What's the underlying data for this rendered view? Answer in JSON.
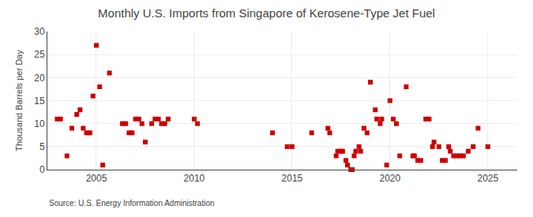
{
  "chart_data": {
    "type": "scatter",
    "title": "Monthly U.S. Imports from Singapore of Kerosene-Type Jet Fuel",
    "ylabel": "Thousand Barrels per Day",
    "annotations": [
      "Source: U.S. Energy Information Administration"
    ],
    "x": [
      2003.0,
      2003.17,
      2003.5,
      2003.75,
      2004.0,
      2004.17,
      2004.33,
      2004.5,
      2004.67,
      2004.83,
      2005.0,
      2005.17,
      2005.33,
      2005.67,
      2006.33,
      2006.5,
      2006.67,
      2006.83,
      2007.0,
      2007.17,
      2007.33,
      2007.5,
      2007.83,
      2008.0,
      2008.17,
      2008.33,
      2008.5,
      2008.67,
      2010.0,
      2010.17,
      2014.0,
      2014.75,
      2015.0,
      2016.0,
      2016.83,
      2016.92,
      2017.25,
      2017.33,
      2017.5,
      2017.58,
      2017.75,
      2017.83,
      2018.0,
      2018.08,
      2018.17,
      2018.25,
      2018.42,
      2018.5,
      2018.67,
      2018.83,
      2019.0,
      2019.25,
      2019.33,
      2019.5,
      2019.58,
      2019.83,
      2020.0,
      2020.17,
      2020.33,
      2020.5,
      2020.83,
      2021.17,
      2021.25,
      2021.42,
      2021.58,
      2021.83,
      2022.0,
      2022.17,
      2022.25,
      2022.5,
      2022.67,
      2022.83,
      2023.0,
      2023.08,
      2023.25,
      2023.42,
      2023.58,
      2023.75,
      2024.0,
      2024.25,
      2024.5,
      2025.0
    ],
    "values": [
      11,
      11,
      3,
      9,
      12,
      13,
      9,
      8,
      8,
      16,
      27,
      18,
      1,
      21,
      10,
      10,
      8,
      8,
      11,
      11,
      10,
      6,
      10,
      11,
      11,
      10,
      10,
      11,
      11,
      10,
      8,
      5,
      5,
      8,
      9,
      8,
      3,
      4,
      4,
      4,
      2,
      1,
      0,
      0,
      3,
      4,
      5,
      4,
      9,
      8,
      19,
      13,
      11,
      10,
      11,
      1,
      15,
      11,
      10,
      3,
      18,
      3,
      3,
      2,
      2,
      11,
      11,
      5,
      6,
      5,
      2,
      2,
      5,
      4,
      3,
      3,
      3,
      3,
      4,
      5,
      9,
      5
    ],
    "color": "#cc0000",
    "marker": "square",
    "xlim": [
      2002.5,
      2026.5
    ],
    "xticks": [
      2005,
      2010,
      2015,
      2020,
      2025
    ],
    "ylim": [
      0,
      30
    ],
    "yticks": [
      0,
      5,
      10,
      15,
      20,
      25,
      30
    ],
    "grid": true
  }
}
